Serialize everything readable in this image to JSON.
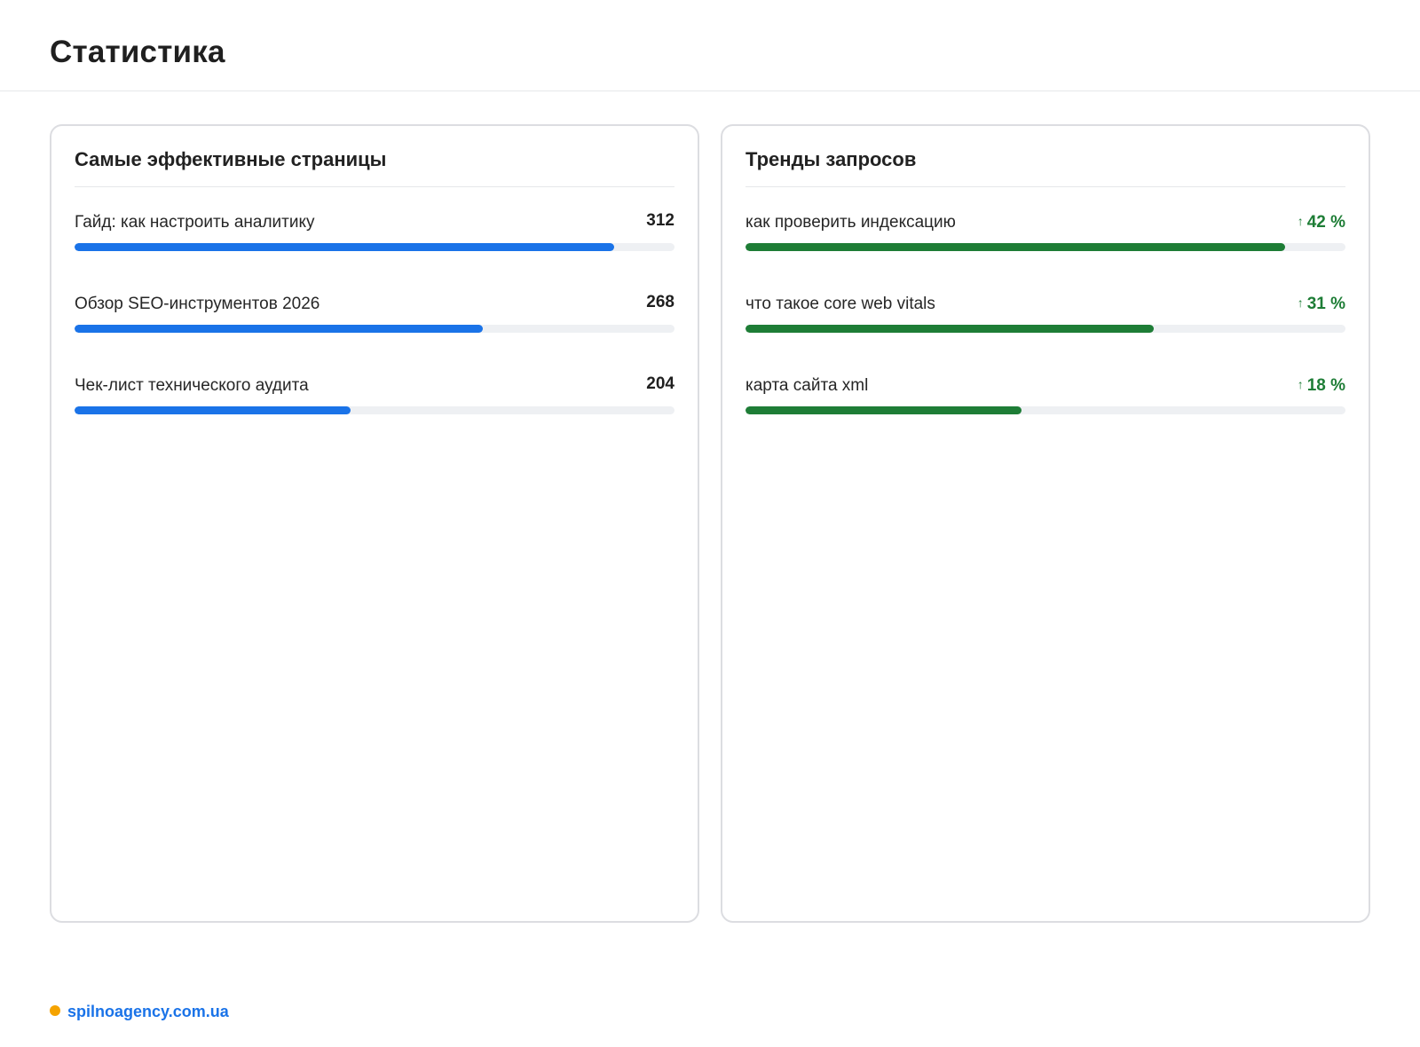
{
  "header": {
    "title": "Статистика"
  },
  "top_pages": {
    "title": "Самые эффективные страницы",
    "items": [
      {
        "label": "Гайд: как настроить аналитику",
        "value": "312",
        "fraction": 0.9
      },
      {
        "label": "Обзор SEO-инструментов 2026",
        "value": "268",
        "fraction": 0.68
      },
      {
        "label": "Чек-лист технического аудита",
        "value": "204",
        "fraction": 0.46
      }
    ]
  },
  "query_trends": {
    "title": "Тренды запросов",
    "items": [
      {
        "label": "как проверить индексацию",
        "value": "42 %",
        "fraction": 0.9
      },
      {
        "label": "что такое core web vitals",
        "value": "31 %",
        "fraction": 0.68
      },
      {
        "label": "карта сайта xml",
        "value": "18 %",
        "fraction": 0.46
      }
    ]
  },
  "footer": {
    "link_text": "spilnoagency.com.ua"
  },
  "colors": {
    "accent_blue": "#1a73e8",
    "trend_green": "#1e7d36",
    "brand_dot": "#f5a300"
  },
  "icons": {
    "trend": "arrow-up-icon",
    "brand": "dot-icon"
  }
}
